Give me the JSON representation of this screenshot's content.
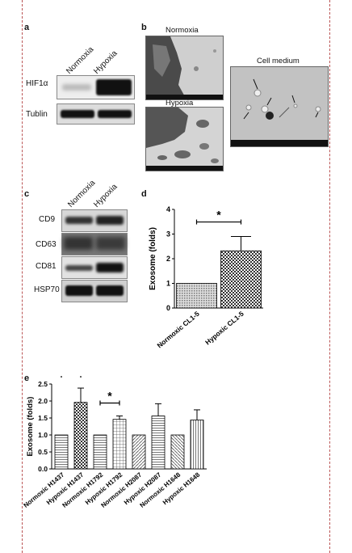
{
  "panels": {
    "a": "a",
    "b": "b",
    "c": "c",
    "d": "d",
    "e": "e"
  },
  "panel_a": {
    "columns": [
      "Normoxia",
      "Hypoxia"
    ],
    "rows": [
      "HIF1α",
      "Tublin"
    ]
  },
  "panel_b": {
    "normoxia_title": "Normoxia",
    "hypoxia_title": "Hypoxia",
    "cell_medium_title": "Cell medium"
  },
  "panel_c": {
    "columns": [
      "Normoxia",
      "Hypoxia"
    ],
    "rows": [
      "CD9",
      "CD63",
      "CD81",
      "HSP70"
    ]
  },
  "chart_data": [
    {
      "panel": "d",
      "type": "bar",
      "categories": [
        "Normoxic CL1-5",
        "Hypoxic CL1-5"
      ],
      "values": [
        1.0,
        2.32
      ],
      "errors": [
        0,
        0.58
      ],
      "ylabel": "Exosome (folds)",
      "ylim": [
        0,
        4
      ],
      "yticks": [
        "0",
        "1",
        "2",
        "3",
        "4"
      ],
      "significance": [
        {
          "pair": [
            0,
            1
          ],
          "label": "*"
        }
      ],
      "grid": false
    },
    {
      "panel": "e",
      "type": "bar",
      "categories": [
        "Normoxic H1437",
        "Hypoxic H1437",
        "Normoxic H1792",
        "Hypoxic H1792",
        "Normoxic H2087",
        "Hypoxic H2087",
        "Normoxic H1648",
        "Hypoxic H1648"
      ],
      "values": [
        1.0,
        1.96,
        1.0,
        1.46,
        1.0,
        1.56,
        1.0,
        1.44
      ],
      "errors": [
        0,
        0.42,
        0,
        0.1,
        0,
        0.36,
        0,
        0.3
      ],
      "ylabel": "Exosome (folds)",
      "ylim": [
        0,
        2.5
      ],
      "yticks": [
        "0.0",
        "0.5",
        "1.0",
        "1.5",
        "2.0",
        "2.5"
      ],
      "significance": [
        {
          "pair": [
            0,
            1
          ],
          "label": "*"
        },
        {
          "pair": [
            2,
            3
          ],
          "label": "*"
        }
      ],
      "grid": false
    }
  ]
}
